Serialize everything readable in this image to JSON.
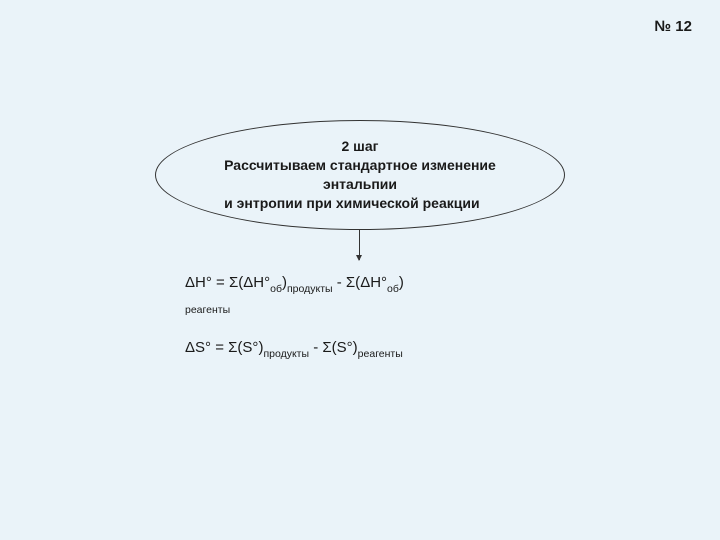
{
  "slide_number": "№ 12",
  "colors": {
    "background": "#eaf3f9",
    "text": "#1a1a1a",
    "border": "#333333"
  },
  "ellipse": {
    "step_title": "2 шаг",
    "line1": "Рассчитываем стандартное изменение",
    "line2": "энтальпии",
    "line3": "и энтропии при химической реакции"
  },
  "formulas": {
    "dh_main": "ΔH°",
    "eq": " = ",
    "sigma_open": "Σ(",
    "dh_inner": "ΔH°",
    "ob_sub": "об",
    "close_paren": ")",
    "products_sub": "продукты",
    "minus": " - ",
    "reagents_sub": "реагенты",
    "ds_main": "ΔS°",
    "s_inner": "S°"
  }
}
